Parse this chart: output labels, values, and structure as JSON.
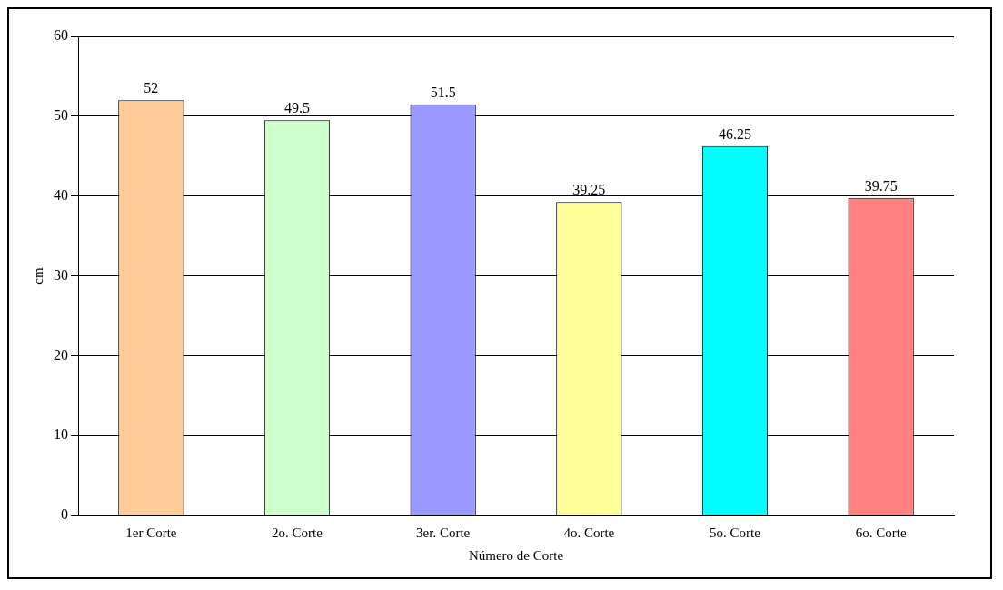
{
  "chart_data": {
    "type": "bar",
    "xlabel": "Número de Corte",
    "ylabel": "cm",
    "categories": [
      "1er Corte",
      "2o. Corte",
      "3er. Corte",
      "4o. Corte",
      "5o. Corte",
      "6o. Corte"
    ],
    "values": [
      52,
      49.5,
      51.5,
      39.25,
      46.25,
      39.75
    ],
    "colors": [
      "#ffcc99",
      "#ccffcc",
      "#9999ff",
      "#ffff99",
      "#00ffff",
      "#ff8080"
    ],
    "ylim": [
      0,
      60
    ],
    "yticks": [
      0,
      10,
      20,
      30,
      40,
      50,
      60
    ],
    "grid": "y",
    "data_labels": true
  }
}
